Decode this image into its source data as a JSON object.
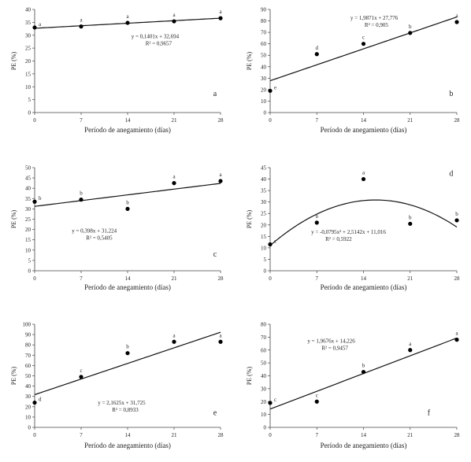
{
  "chart_data": [
    {
      "id": "a",
      "type": "scatter",
      "panel_letter": "a",
      "xlabel": "Período de anegamiento (días)",
      "ylabel": "PE (%)",
      "xticks": [
        0,
        7,
        14,
        21,
        28
      ],
      "xlim": [
        0,
        28
      ],
      "ylim": [
        0,
        40
      ],
      "yticks": [
        0,
        5,
        10,
        15,
        20,
        25,
        30,
        35,
        40
      ],
      "points": [
        {
          "x": 0,
          "y": 33,
          "label": "a"
        },
        {
          "x": 7,
          "y": 33.4,
          "label": "a"
        },
        {
          "x": 14,
          "y": 34.8,
          "label": "a"
        },
        {
          "x": 21,
          "y": 35.4,
          "label": "a"
        },
        {
          "x": 28,
          "y": 36.6,
          "label": "a"
        }
      ],
      "fit": {
        "type": "linear",
        "coef": [
          0.1401,
          32.694
        ]
      },
      "equation": "y = 0,1401x + 32,694",
      "r2": "R² = 0,9657"
    },
    {
      "id": "b",
      "type": "scatter",
      "panel_letter": "b",
      "xlabel": "Período de anegamiento (días)",
      "ylabel": "PE (%)",
      "xticks": [
        0,
        7,
        14,
        21,
        28
      ],
      "xlim": [
        0,
        28
      ],
      "ylim": [
        0,
        90
      ],
      "yticks": [
        0,
        10,
        20,
        30,
        40,
        50,
        60,
        70,
        80,
        90
      ],
      "points": [
        {
          "x": 0,
          "y": 19,
          "label": "e"
        },
        {
          "x": 7,
          "y": 51,
          "label": "d"
        },
        {
          "x": 14,
          "y": 60,
          "label": "c"
        },
        {
          "x": 21,
          "y": 69.5,
          "label": "b"
        },
        {
          "x": 28,
          "y": 79,
          "label": "a"
        }
      ],
      "fit": {
        "type": "linear",
        "coef": [
          1.9871,
          27.776
        ]
      },
      "equation": "y = 1,9871x + 27,776",
      "r2": "R² = 0,905"
    },
    {
      "id": "c",
      "type": "scatter",
      "panel_letter": "c",
      "xlabel": "Período de anegamiento (días)",
      "ylabel": "PE (%)",
      "xticks": [
        0,
        7,
        14,
        21,
        28
      ],
      "xlim": [
        0,
        28
      ],
      "ylim": [
        0,
        50
      ],
      "yticks": [
        0,
        5,
        10,
        15,
        20,
        25,
        30,
        35,
        40,
        45,
        50
      ],
      "points": [
        {
          "x": 0,
          "y": 33.5,
          "label": "b"
        },
        {
          "x": 7,
          "y": 34.5,
          "label": "b"
        },
        {
          "x": 14,
          "y": 30,
          "label": "b"
        },
        {
          "x": 21,
          "y": 42.5,
          "label": "a"
        },
        {
          "x": 28,
          "y": 43.5,
          "label": "a"
        }
      ],
      "fit": {
        "type": "linear",
        "coef": [
          0.398,
          31.224
        ]
      },
      "equation": "y = 0,398x + 31,224",
      "r2": "R² = 0,5405"
    },
    {
      "id": "d",
      "type": "scatter",
      "panel_letter": "d",
      "xlabel": "Período de anegamiento (días)",
      "ylabel": "PE (%)",
      "xticks": [
        0,
        7,
        14,
        21,
        28
      ],
      "xlim": [
        0,
        28
      ],
      "ylim": [
        0,
        45
      ],
      "yticks": [
        0,
        5,
        10,
        15,
        20,
        25,
        30,
        35,
        40,
        45
      ],
      "points": [
        {
          "x": 0,
          "y": 11.5,
          "label": "c"
        },
        {
          "x": 7,
          "y": 21,
          "label": "b"
        },
        {
          "x": 14,
          "y": 40,
          "label": "a"
        },
        {
          "x": 21,
          "y": 20.5,
          "label": "b"
        },
        {
          "x": 28,
          "y": 22,
          "label": "b"
        }
      ],
      "fit": {
        "type": "quadratic",
        "coef": [
          -0.0795,
          2.5142,
          11.016
        ]
      },
      "equation": "y = -0,0795x² + 2,5142x + 11,016",
      "r2": "R² = 0,5922"
    },
    {
      "id": "e",
      "type": "scatter",
      "panel_letter": "e",
      "xlabel": "Período de anegamiento (días)",
      "ylabel": "PE (%)",
      "xticks": [
        0,
        7,
        14,
        21,
        28
      ],
      "xlim": [
        0,
        28
      ],
      "ylim": [
        0,
        100
      ],
      "yticks": [
        0,
        10,
        20,
        30,
        40,
        50,
        60,
        70,
        80,
        90,
        100
      ],
      "points": [
        {
          "x": 0,
          "y": 24,
          "label": "d"
        },
        {
          "x": 7,
          "y": 49,
          "label": "c"
        },
        {
          "x": 14,
          "y": 72,
          "label": "b"
        },
        {
          "x": 21,
          "y": 83,
          "label": "a"
        },
        {
          "x": 28,
          "y": 83,
          "label": "a"
        }
      ],
      "fit": {
        "type": "linear",
        "coef": [
          2.1625,
          31.725
        ]
      },
      "equation": "y = 2,1625x + 31,725",
      "r2": "R² = 0,8933"
    },
    {
      "id": "f",
      "type": "scatter",
      "panel_letter": "f",
      "xlabel": "Período de anegamiento (días)",
      "ylabel": "PE (%)",
      "xticks": [
        0,
        7,
        14,
        21,
        28
      ],
      "xlim": [
        0,
        28
      ],
      "ylim": [
        0,
        80
      ],
      "yticks": [
        0,
        10,
        20,
        30,
        40,
        50,
        60,
        70,
        80
      ],
      "points": [
        {
          "x": 0,
          "y": 19,
          "label": "c"
        },
        {
          "x": 7,
          "y": 20,
          "label": "c"
        },
        {
          "x": 14,
          "y": 43,
          "label": "b"
        },
        {
          "x": 21,
          "y": 60,
          "label": "a"
        },
        {
          "x": 28,
          "y": 68,
          "label": "a"
        }
      ],
      "fit": {
        "type": "linear",
        "coef": [
          1.9676,
          14.226
        ]
      },
      "equation": "y = 1,9676x + 14,226",
      "r2": "R² = 0,9457"
    }
  ]
}
